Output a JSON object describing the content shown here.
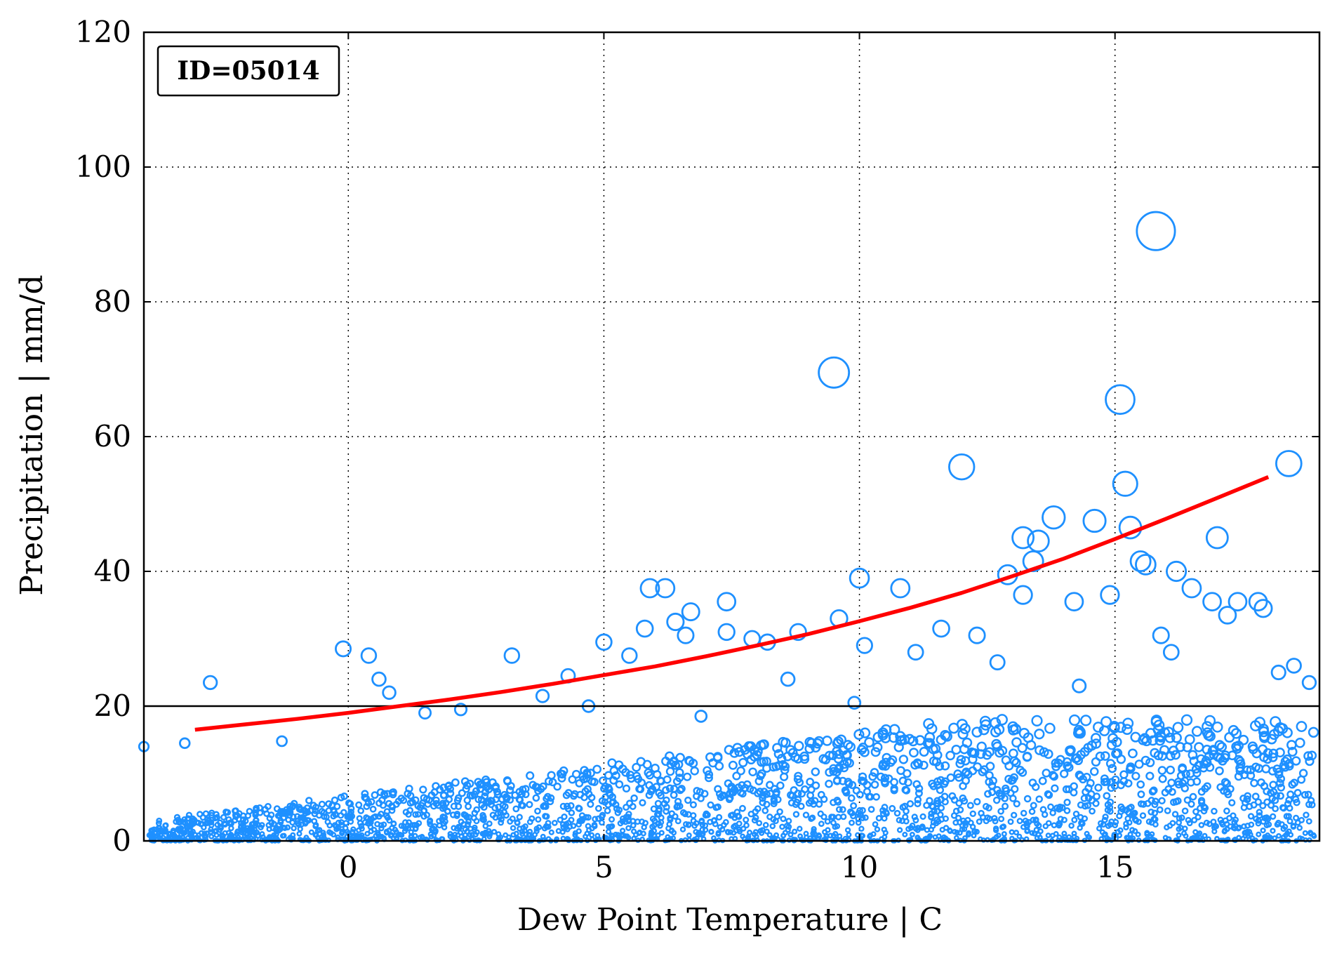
{
  "chart_data": {
    "type": "scatter",
    "id_label": "ID=05014",
    "xlabel": "Dew Point Temperature | C",
    "ylabel": "Precipitation | mm/d",
    "xlim": [
      -4,
      19
    ],
    "ylim": [
      0,
      120
    ],
    "x_ticks": [
      0,
      5,
      10,
      15
    ],
    "x_tick_labels": [
      "0",
      "5",
      "10",
      "15"
    ],
    "y_ticks": [
      0,
      20,
      40,
      60,
      80,
      100,
      120
    ],
    "y_tick_labels": [
      "0",
      "20",
      "40",
      "60",
      "80",
      "100",
      "120"
    ],
    "grid": true,
    "threshold_line": {
      "y": 20,
      "color": "#000000"
    },
    "marker_color": "#1e90ff",
    "fit_color": "#ff0000",
    "fit_curve": {
      "x": [
        -3,
        -2,
        -1,
        0,
        1,
        2,
        3,
        4,
        5,
        6,
        7,
        8,
        9,
        10,
        11,
        12,
        13,
        14,
        15,
        16,
        17,
        18
      ],
      "y": [
        16.5,
        17.3,
        18.1,
        19.0,
        20.0,
        21.0,
        22.1,
        23.3,
        24.6,
        25.9,
        27.4,
        29.0,
        30.7,
        32.6,
        34.6,
        36.8,
        39.3,
        41.9,
        44.8,
        47.8,
        50.9,
        54.0
      ]
    },
    "points": {
      "x": [
        -2.7,
        -0.1,
        0.4,
        0.6,
        0.8,
        3.2,
        4.3,
        5.0,
        5.5,
        5.8,
        5.9,
        6.2,
        6.4,
        6.6,
        6.7,
        7.4,
        7.4,
        7.9,
        8.2,
        8.8,
        9.5,
        9.6,
        10.0,
        10.1,
        10.8,
        11.6,
        12.0,
        12.3,
        12.9,
        13.2,
        13.2,
        13.4,
        13.5,
        13.8,
        14.2,
        14.6,
        14.9,
        15.1,
        15.2,
        15.3,
        15.5,
        15.6,
        15.8,
        15.9,
        16.2,
        16.5,
        16.9,
        17.0,
        17.2,
        17.4,
        17.8,
        17.9,
        18.4,
        18.5,
        18.8,
        -4.0,
        -3.2,
        -1.3,
        1.5,
        2.2,
        3.8,
        4.7,
        6.9,
        8.6,
        9.9,
        11.1,
        12.7,
        14.3,
        16.1,
        18.2
      ],
      "y": [
        23.5,
        28.5,
        27.5,
        24.0,
        22.0,
        27.5,
        24.5,
        29.5,
        27.5,
        31.5,
        37.5,
        37.5,
        32.5,
        30.5,
        34.0,
        35.5,
        31.0,
        30.0,
        29.5,
        31.0,
        69.5,
        33.0,
        39.0,
        29.0,
        37.5,
        31.5,
        55.5,
        30.5,
        39.5,
        45.0,
        36.5,
        41.5,
        44.5,
        48.0,
        35.5,
        47.5,
        36.5,
        65.5,
        53.0,
        46.5,
        41.5,
        41.0,
        90.5,
        30.5,
        40.0,
        37.5,
        35.5,
        45.0,
        33.5,
        35.5,
        35.5,
        34.5,
        56.0,
        26.0,
        23.5,
        14.0,
        14.5,
        14.8,
        19.0,
        19.5,
        21.5,
        20.0,
        18.5,
        24.0,
        20.5,
        28.0,
        26.5,
        23.0,
        28.0,
        25.0
      ]
    }
  }
}
